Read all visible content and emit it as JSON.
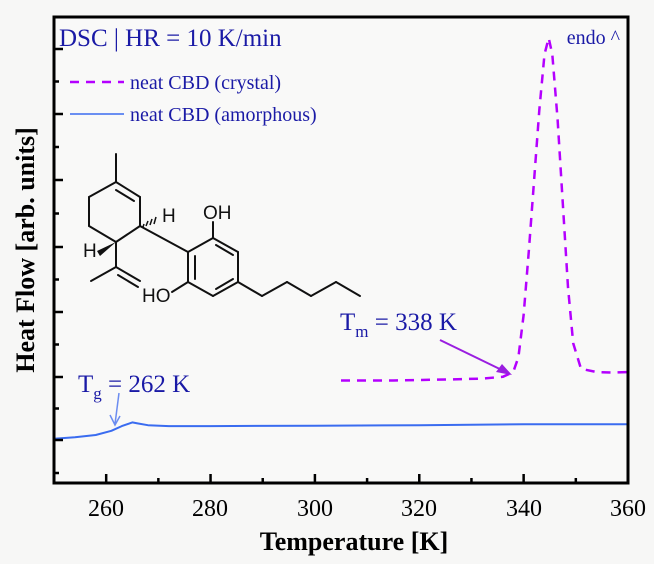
{
  "chart_data": {
    "type": "line",
    "title": "DSC | HR = 10 K/min",
    "xlabel": "Temperature [K]",
    "ylabel": "Heat Flow [arb. units]",
    "xlim": [
      250,
      360
    ],
    "xticks": [
      260,
      280,
      300,
      320,
      340,
      360
    ],
    "ylim": [
      0,
      1
    ],
    "yticks_labeled": false,
    "grid": false,
    "legend_position": "upper left",
    "corner_annotation": "endo ^",
    "series": [
      {
        "name": "neat CBD (crystal)",
        "style": "dashed",
        "color": "#b400ff",
        "x": [
          305,
          315,
          325,
          332,
          336,
          338,
          339,
          340,
          341,
          342,
          343,
          344,
          344.8,
          345.5,
          346.5,
          347.5,
          348.5,
          349.5,
          351,
          354,
          357,
          360
        ],
        "y": [
          0.22,
          0.22,
          0.222,
          0.224,
          0.228,
          0.238,
          0.27,
          0.36,
          0.5,
          0.65,
          0.8,
          0.92,
          0.955,
          0.92,
          0.78,
          0.6,
          0.42,
          0.3,
          0.245,
          0.238,
          0.237,
          0.238
        ]
      },
      {
        "name": "neat CBD (amorphous)",
        "style": "solid",
        "color": "#3a6cf0",
        "x": [
          250,
          254,
          258,
          261,
          263,
          265,
          266,
          268,
          272,
          280,
          300,
          320,
          340,
          360
        ],
        "y": [
          0.095,
          0.098,
          0.103,
          0.112,
          0.122,
          0.13,
          0.128,
          0.124,
          0.122,
          0.122,
          0.123,
          0.124,
          0.126,
          0.126
        ]
      }
    ],
    "annotations": [
      {
        "text_main": "T",
        "text_sub": "g",
        "text_rest": " = 262 K",
        "x": 262,
        "arrow": true
      },
      {
        "text_main": "T",
        "text_sub": "m",
        "text_rest": " = 338 K",
        "x": 338,
        "arrow": true
      }
    ]
  },
  "labels": {
    "title": "DSC | HR = 10 K/min",
    "endo": "endo ^",
    "legend_crystal": "neat CBD (crystal)",
    "legend_amorphous": "neat CBD (amorphous)",
    "xlabel": "Temperature [K]",
    "ylabel": "Heat Flow [arb. units]",
    "tg_T": "T",
    "tg_sub": "g",
    "tg_rest": " = 262 K",
    "tm_T": "T",
    "tm_sub": "m",
    "tm_rest": " = 338 K",
    "xtick_0": "260",
    "xtick_1": "280",
    "xtick_2": "300",
    "xtick_3": "320",
    "xtick_4": "340",
    "xtick_5": "360",
    "mol_oh_top": "OH",
    "mol_ho_bottom": "HO",
    "mol_h_right": "H",
    "mol_h_left": "H"
  },
  "colors": {
    "crystal": "#b400ff",
    "amorphous": "#3a6cf0",
    "annotation_text": "#1a1aa6",
    "tm_arrow": "#9a1ee0",
    "tg_arrow": "#6b8cf0"
  }
}
